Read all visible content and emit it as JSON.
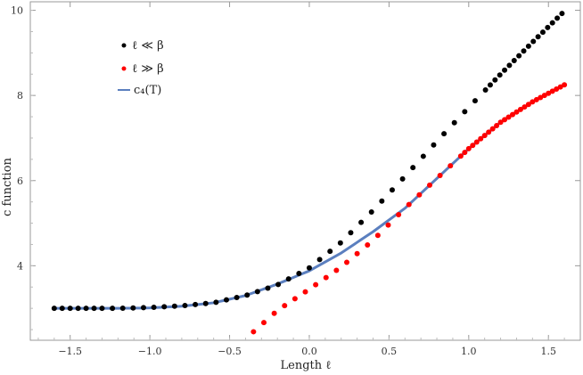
{
  "chart_data": {
    "type": "scatter",
    "xlabel": "Length ℓ",
    "ylabel": "c function",
    "xlim": [
      -1.75,
      1.7
    ],
    "ylim": [
      2.25,
      10.2
    ],
    "xticks": [
      -1.5,
      -1.0,
      -0.5,
      0.0,
      0.5,
      1.0,
      1.5
    ],
    "xtick_labels": [
      "−1.5",
      "−1.0",
      "−0.5",
      "0.0",
      "0.5",
      "1.0",
      "1.5"
    ],
    "yticks": [
      4,
      6,
      8,
      10
    ],
    "ytick_labels": [
      "4",
      "6",
      "8",
      "10"
    ],
    "legend_position": "top-left",
    "series": [
      {
        "name": "ℓ ≪ β",
        "marker": "dot",
        "color": "#000000",
        "x_range": [
          -1.6,
          1.6
        ],
        "points": [
          [
            -1.6,
            3.0
          ],
          [
            -1.4,
            3.0
          ],
          [
            -1.2,
            3.0
          ],
          [
            -1.0,
            3.02
          ],
          [
            -0.8,
            3.06
          ],
          [
            -0.6,
            3.13
          ],
          [
            -0.4,
            3.3
          ],
          [
            -0.2,
            3.55
          ],
          [
            0.0,
            3.95
          ],
          [
            0.2,
            4.55
          ],
          [
            0.4,
            5.3
          ],
          [
            0.6,
            6.1
          ],
          [
            0.8,
            6.92
          ],
          [
            1.0,
            7.72
          ],
          [
            1.2,
            8.5
          ],
          [
            1.4,
            9.25
          ],
          [
            1.6,
            9.98
          ]
        ]
      },
      {
        "name": "ℓ ≫ β",
        "marker": "dot",
        "color": "#ff0000",
        "x_range": [
          -0.35,
          1.6
        ],
        "points": [
          [
            -0.35,
            2.45
          ],
          [
            -0.2,
            2.95
          ],
          [
            0.0,
            3.45
          ],
          [
            0.2,
            3.97
          ],
          [
            0.4,
            4.6
          ],
          [
            0.6,
            5.35
          ],
          [
            0.8,
            6.05
          ],
          [
            1.0,
            6.75
          ],
          [
            1.2,
            7.37
          ],
          [
            1.4,
            7.85
          ],
          [
            1.6,
            8.25
          ]
        ]
      },
      {
        "name": "c₄(T)",
        "marker": "line",
        "color": "#5b7fbf",
        "points": [
          [
            -1.6,
            3.0
          ],
          [
            -1.4,
            3.0
          ],
          [
            -1.2,
            3.0
          ],
          [
            -1.0,
            3.01
          ],
          [
            -0.8,
            3.05
          ],
          [
            -0.6,
            3.13
          ],
          [
            -0.4,
            3.3
          ],
          [
            -0.2,
            3.57
          ],
          [
            0.0,
            3.88
          ],
          [
            0.2,
            4.3
          ],
          [
            0.4,
            4.8
          ],
          [
            0.6,
            5.35
          ],
          [
            0.8,
            6.05
          ],
          [
            1.0,
            6.75
          ],
          [
            1.2,
            7.37
          ],
          [
            1.4,
            7.85
          ],
          [
            1.6,
            8.25
          ]
        ]
      }
    ]
  }
}
